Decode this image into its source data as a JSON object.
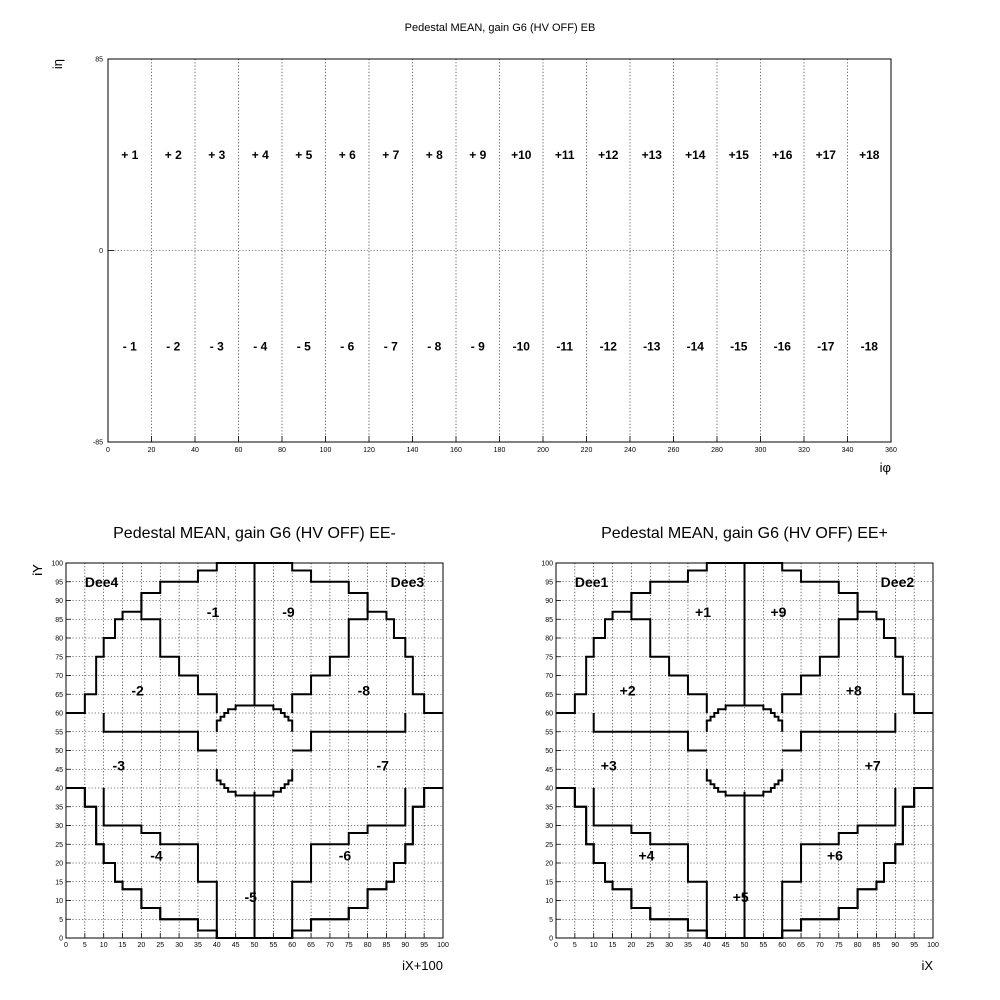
{
  "chart_data": [
    {
      "id": "EB",
      "type": "heatmap",
      "title": "Pedestal MEAN, gain G6 (HV OFF) EB",
      "xlabel": "iφ",
      "ylabel": "iη",
      "xlim": [
        0,
        360
      ],
      "ylim": [
        -85,
        85
      ],
      "x_ticks": [
        "0",
        "20",
        "40",
        "60",
        "80",
        "100",
        "120",
        "140",
        "160",
        "180",
        "200",
        "220",
        "240",
        "260",
        "280",
        "300",
        "320",
        "340",
        "360"
      ],
      "y_ticks": [
        "-85",
        "0",
        "85"
      ],
      "grid": true,
      "supermodules_plus": [
        "+ 1",
        "+ 2",
        "+ 3",
        "+ 4",
        "+ 5",
        "+ 6",
        "+ 7",
        "+ 8",
        "+ 9",
        "+10",
        "+11",
        "+12",
        "+13",
        "+14",
        "+15",
        "+16",
        "+17",
        "+18"
      ],
      "supermodules_minus": [
        "- 1",
        "- 2",
        "- 3",
        "- 4",
        "- 5",
        "- 6",
        "- 7",
        "- 8",
        "- 9",
        "-10",
        "-11",
        "-12",
        "-13",
        "-14",
        "-15",
        "-16",
        "-17",
        "-18"
      ]
    },
    {
      "id": "EEm",
      "type": "heatmap",
      "title": "Pedestal MEAN, gain G6 (HV OFF) EE-",
      "xlabel": "iX+100",
      "ylabel": "iY",
      "xlim": [
        0,
        100
      ],
      "ylim": [
        0,
        100
      ],
      "grid": true,
      "dee_left": "Dee4",
      "dee_right": "Dee3",
      "sectors": [
        {
          "label": "-1",
          "x": 39,
          "y": 87
        },
        {
          "label": "-9",
          "x": 59,
          "y": 87
        },
        {
          "label": "-2",
          "x": 19,
          "y": 66
        },
        {
          "label": "-8",
          "x": 79,
          "y": 66
        },
        {
          "label": "-3",
          "x": 14,
          "y": 46
        },
        {
          "label": "-7",
          "x": 84,
          "y": 46
        },
        {
          "label": "-4",
          "x": 24,
          "y": 22
        },
        {
          "label": "-6",
          "x": 74,
          "y": 22
        },
        {
          "label": "-5",
          "x": 49,
          "y": 11
        }
      ]
    },
    {
      "id": "EEp",
      "type": "heatmap",
      "title": "Pedestal MEAN, gain G6 (HV OFF) EE+",
      "xlabel": "iX",
      "ylabel": "iY",
      "xlim": [
        0,
        100
      ],
      "ylim": [
        0,
        100
      ],
      "grid": true,
      "dee_left": "Dee1",
      "dee_right": "Dee2",
      "sectors": [
        {
          "label": "+1",
          "x": 39,
          "y": 87
        },
        {
          "label": "+9",
          "x": 59,
          "y": 87
        },
        {
          "label": "+2",
          "x": 19,
          "y": 66
        },
        {
          "label": "+8",
          "x": 79,
          "y": 66
        },
        {
          "label": "+3",
          "x": 14,
          "y": 46
        },
        {
          "label": "+7",
          "x": 84,
          "y": 46
        },
        {
          "label": "+4",
          "x": 24,
          "y": 22
        },
        {
          "label": "+6",
          "x": 74,
          "y": 22
        },
        {
          "label": "+5",
          "x": 49,
          "y": 11
        }
      ]
    }
  ]
}
